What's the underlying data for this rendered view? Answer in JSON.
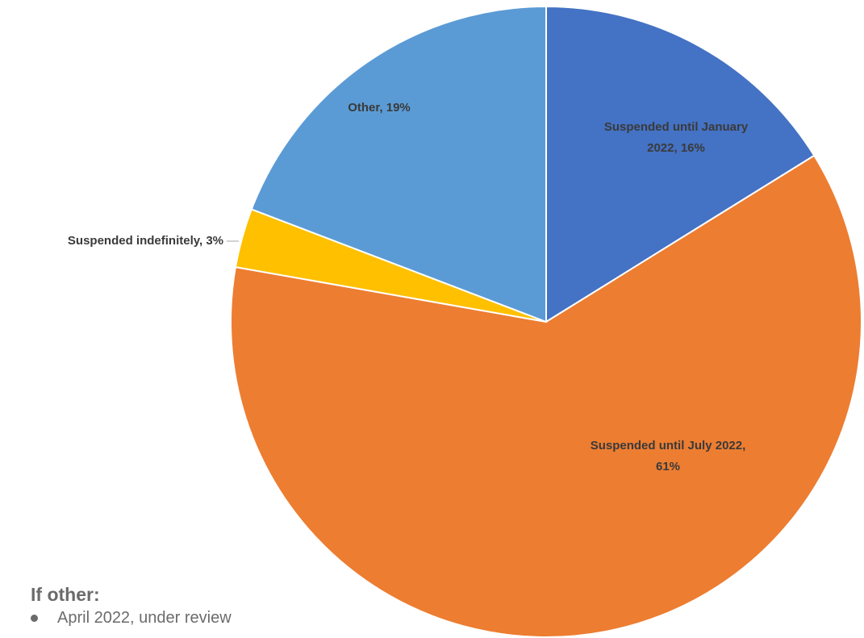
{
  "chart_data": {
    "type": "pie",
    "slices": [
      {
        "label": "Suspended until January 2022",
        "value": 16,
        "color": "#4472C4",
        "label_text": [
          "Suspended until January",
          "2022, 16%"
        ]
      },
      {
        "label": "Suspended until July 2022",
        "value": 61,
        "color": "#ED7D31",
        "label_text": [
          "Suspended until July 2022,",
          "61%"
        ]
      },
      {
        "label": "Suspended indefinitely",
        "value": 3,
        "color": "#FFC000",
        "label_text": [
          "Suspended indefinitely, 3%"
        ]
      },
      {
        "label": "Other",
        "value": 19,
        "color": "#5B9BD5",
        "label_text": [
          "Other, 19%"
        ]
      }
    ]
  },
  "notes": {
    "heading": "If other:",
    "items": [
      "April 2022, under review"
    ]
  }
}
